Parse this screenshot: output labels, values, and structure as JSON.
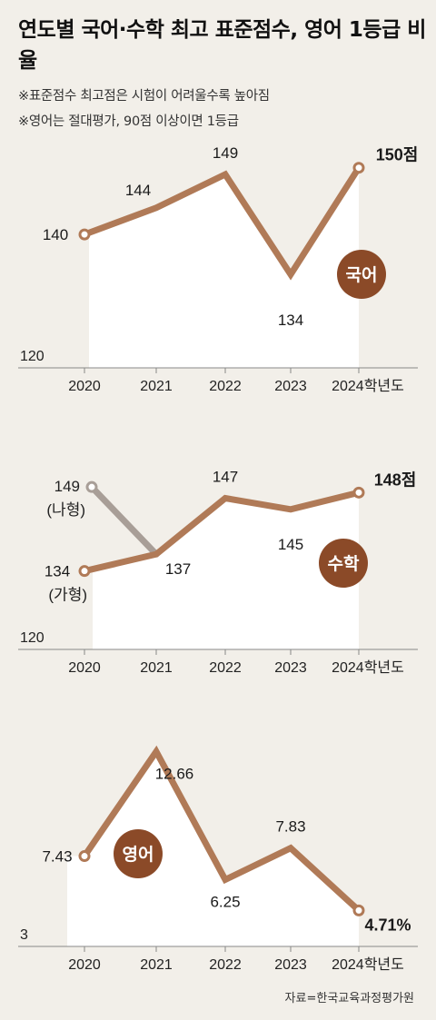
{
  "title": "연도별 국어·수학 최고 표준점수, 영어 1등급 비율",
  "notes": [
    "※표준점수 최고점은 시험이 어려울수록 높아짐",
    "※영어는 절대평가, 90점 이상이면 1등급"
  ],
  "source": "자료=한국교육과정평가원",
  "colors": {
    "line": "#b07a57",
    "badge": "#8b4a28",
    "gray_line": "#a89e97",
    "area": "#ffffff",
    "background": "#f2efe9"
  },
  "chart_data": [
    {
      "type": "line",
      "subject": "국어",
      "categories": [
        "2020",
        "2021",
        "2022",
        "2023",
        "2024학년도"
      ],
      "values": [
        140,
        144,
        149,
        134,
        150
      ],
      "value_labels": [
        "140",
        "144",
        "149",
        "134",
        "150점"
      ],
      "baseline_label": "120",
      "ylim": [
        120,
        152
      ]
    },
    {
      "type": "line",
      "subject": "수학",
      "categories": [
        "2020",
        "2021",
        "2022",
        "2023",
        "2024학년도"
      ],
      "values": [
        134,
        137,
        147,
        145,
        148
      ],
      "value_labels": [
        "134",
        "137",
        "147",
        "145",
        "148점"
      ],
      "first_sub_label": "(가형)",
      "branch": {
        "value": 149,
        "label": "149",
        "sub_label": "(나형)"
      },
      "baseline_label": "120",
      "ylim": [
        120,
        150
      ]
    },
    {
      "type": "line",
      "subject": "영어",
      "categories": [
        "2020",
        "2021",
        "2022",
        "2023",
        "2024학년도"
      ],
      "values": [
        7.43,
        12.66,
        6.25,
        7.83,
        4.71
      ],
      "value_labels": [
        "7.43",
        "12.66",
        "6.25",
        "7.83",
        "4.71%"
      ],
      "baseline_label": "3",
      "ylim": [
        3,
        13
      ]
    }
  ]
}
